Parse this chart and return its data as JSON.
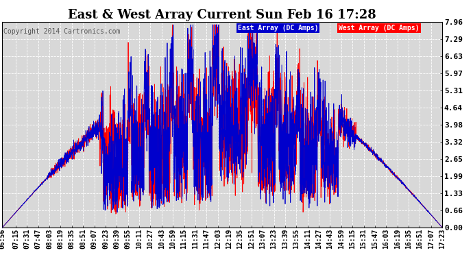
{
  "title": "East & West Array Current Sun Feb 16 17:28",
  "copyright": "Copyright 2014 Cartronics.com",
  "legend_east": "East Array (DC Amps)",
  "legend_west": "West Array (DC Amps)",
  "yticks": [
    0.0,
    0.66,
    1.33,
    1.99,
    2.65,
    3.32,
    3.98,
    4.64,
    5.31,
    5.97,
    6.63,
    7.29,
    7.96
  ],
  "ymax": 7.96,
  "ymin": 0.0,
  "bg_color": "#ffffff",
  "plot_bg_color": "#d8d8d8",
  "grid_color": "#ffffff",
  "east_color": "#0000cc",
  "west_color": "#ff0000",
  "xtick_labels": [
    "06:56",
    "07:15",
    "07:31",
    "07:47",
    "08:03",
    "08:19",
    "08:35",
    "08:51",
    "09:07",
    "09:23",
    "09:39",
    "09:55",
    "10:11",
    "10:27",
    "10:43",
    "10:59",
    "11:15",
    "11:31",
    "11:47",
    "12:03",
    "12:19",
    "12:35",
    "12:51",
    "13:07",
    "13:23",
    "13:39",
    "13:55",
    "14:11",
    "14:27",
    "14:43",
    "14:59",
    "15:15",
    "15:31",
    "15:47",
    "16:03",
    "16:19",
    "16:35",
    "16:51",
    "17:07",
    "17:23"
  ],
  "title_fontsize": 13,
  "copyright_fontsize": 7,
  "ytick_fontsize": 8,
  "xtick_fontsize": 7
}
